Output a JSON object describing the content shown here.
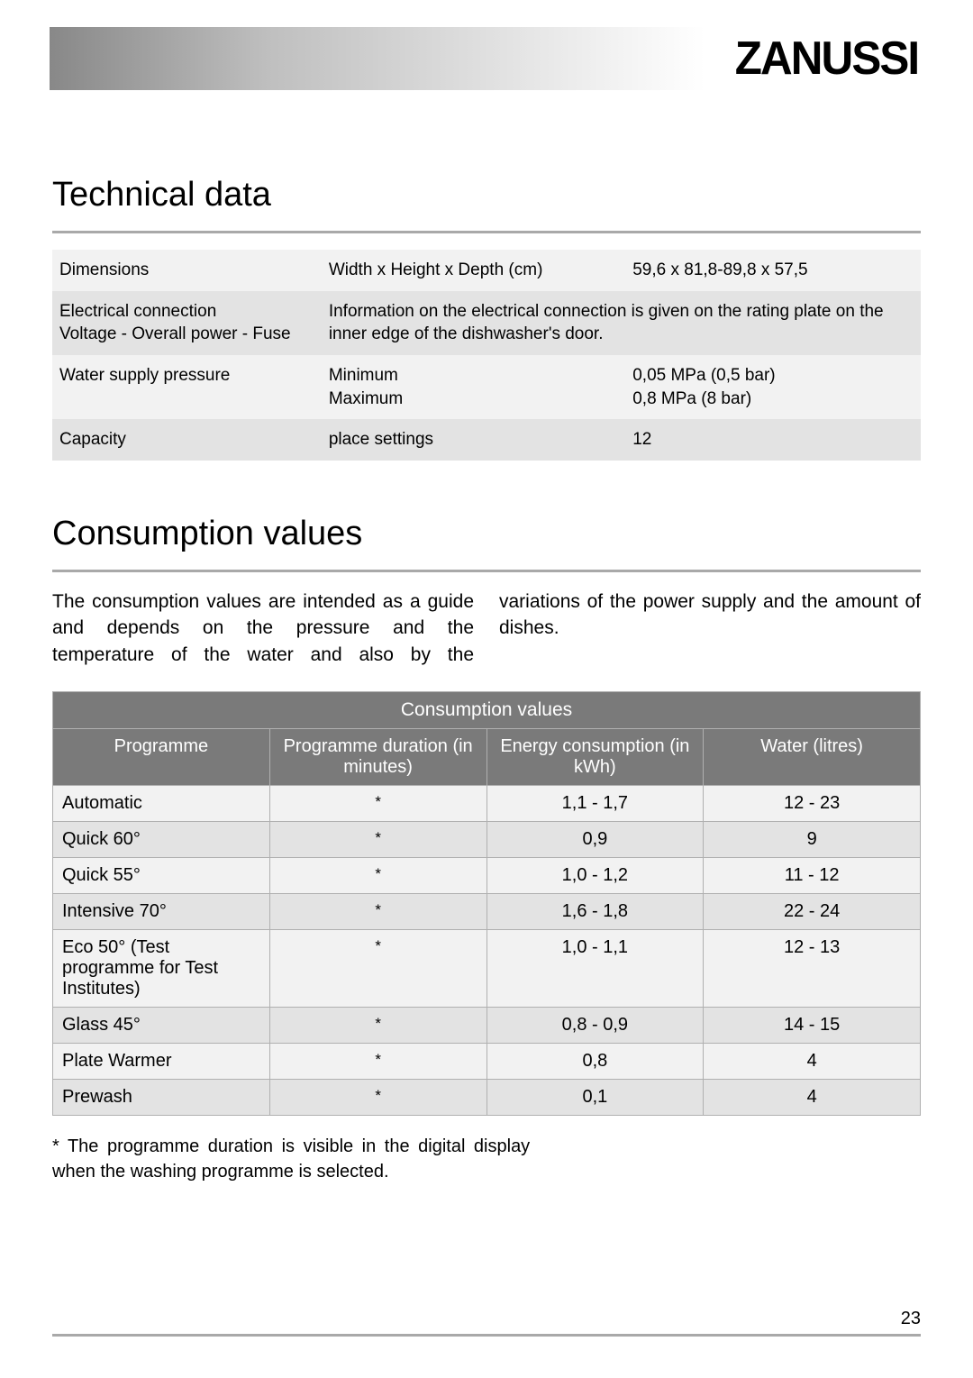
{
  "brand": "ZANUSSI",
  "sections": {
    "tech": {
      "title": "Technical data",
      "rows": [
        {
          "shade": "light",
          "c1": "Dimensions",
          "c2": "Width x Height x Depth (cm)",
          "c3": "59,6 x 81,8-89,8 x 57,5",
          "span": false
        },
        {
          "shade": "dark",
          "c1": "Electrical connection\nVoltage - Overall power - Fuse",
          "c2": "Information on the electrical connection is given on the rating plate on the inner edge of the dishwasher's door.",
          "c3": "",
          "span": true
        },
        {
          "shade": "light",
          "c1": "Water supply pressure",
          "c2": "Minimum\nMaximum",
          "c3": "0,05 MPa (0,5 bar)\n0,8 MPa (8 bar)",
          "span": false
        },
        {
          "shade": "dark",
          "c1": "Capacity",
          "c2": "place settings",
          "c3": "12",
          "span": false
        }
      ]
    },
    "cons": {
      "title": "Consumption values",
      "intro": "The consumption values are intended as a guide and depends on the pressure and the temperature of the water and also by the variations of the power supply and the amount of dishes.",
      "table_caption": "Consumption values",
      "headers": {
        "prog": "Programme",
        "dur": "Programme duration (in minutes)",
        "energy": "Energy consumption (in kWh)",
        "water": "Water (litres)"
      },
      "rows": [
        {
          "shade": "light",
          "prog": "Automatic",
          "dur": "*",
          "energy": "1,1 - 1,7",
          "water": "12 - 23"
        },
        {
          "shade": "dark",
          "prog": "Quick 60°",
          "dur": "*",
          "energy": "0,9",
          "water": "9"
        },
        {
          "shade": "light",
          "prog": "Quick 55°",
          "dur": "*",
          "energy": "1,0 - 1,2",
          "water": "11 - 12"
        },
        {
          "shade": "dark",
          "prog": "Intensive 70°",
          "dur": "*",
          "energy": "1,6 - 1,8",
          "water": "22 - 24"
        },
        {
          "shade": "light",
          "prog": "Eco 50° (Test programme for Test Institutes)",
          "dur": "*",
          "energy": "1,0 - 1,1",
          "water": "12 - 13"
        },
        {
          "shade": "dark",
          "prog": "Glass 45°",
          "dur": "*",
          "energy": "0,8 - 0,9",
          "water": "14 - 15"
        },
        {
          "shade": "light",
          "prog": "Plate Warmer",
          "dur": "*",
          "energy": "0,8",
          "water": "4"
        },
        {
          "shade": "dark",
          "prog": "Prewash",
          "dur": "*",
          "energy": "0,1",
          "water": "4"
        }
      ],
      "footnote": "* The programme duration is visible in the digital display when the washing programme is selected."
    }
  },
  "page_number": "23",
  "colors": {
    "rule": "#a9a9a9",
    "th_bg": "#7a7a7a",
    "th_fg": "#ffffff",
    "row_light": "#f2f2f2",
    "row_dark": "#e3e3e3",
    "border": "#b0b0b0"
  },
  "fonts": {
    "body_pt": 20,
    "title_pt": 38,
    "brand_pt": 52
  }
}
